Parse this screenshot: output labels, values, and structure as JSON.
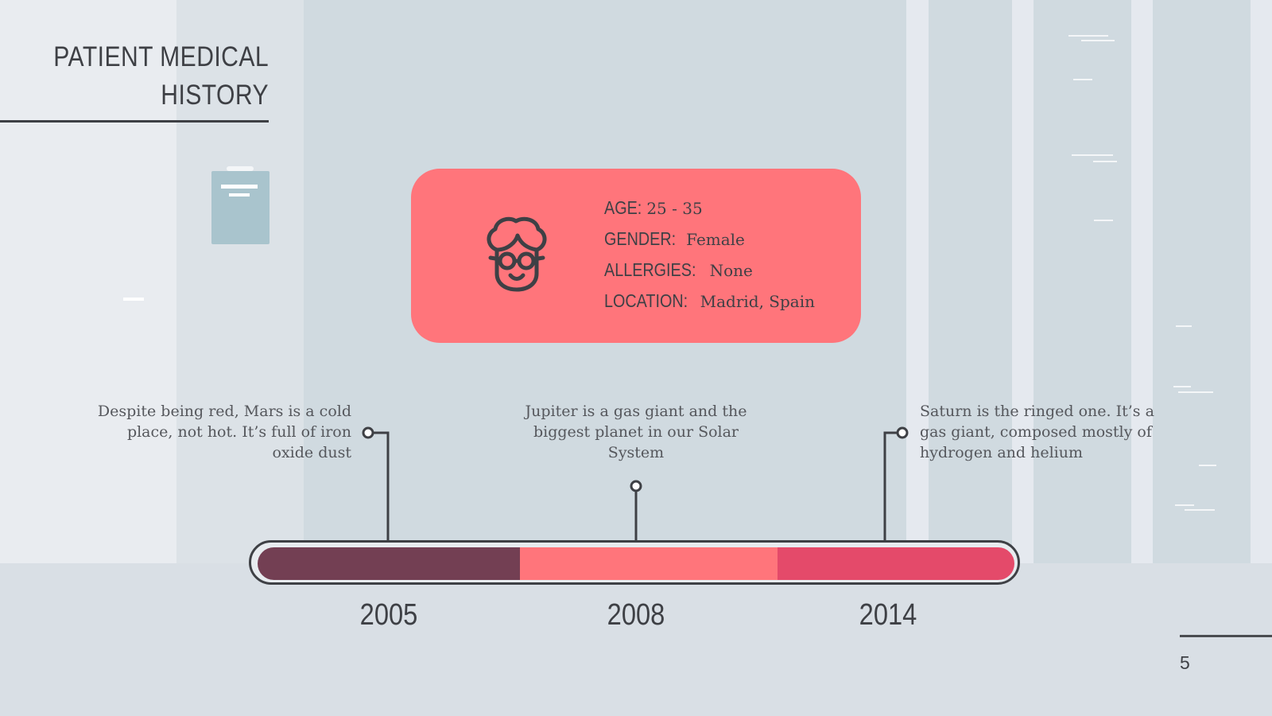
{
  "slide": {
    "title": "PATIENT MEDICAL HISTORY",
    "page_number": "5"
  },
  "patient": {
    "icon": "woman-with-glasses-icon",
    "fields": [
      {
        "label": "AGE:",
        "value": "25 - 35"
      },
      {
        "label": "GENDER:",
        "value": "Female"
      },
      {
        "label": "ALLERGIES:",
        "value": "None"
      },
      {
        "label": "LOCATION:",
        "value": "Madrid, Spain"
      }
    ]
  },
  "timeline": {
    "milestones": [
      {
        "year": "2005",
        "description": "Despite being red, Mars is a cold place, not hot. It’s full of iron oxide dust"
      },
      {
        "year": "2008",
        "description": "Jupiter is a gas giant and the biggest planet in our Solar System"
      },
      {
        "year": "2014",
        "description": "Saturn is the ringed one. It’s a gas giant, composed mostly of hydrogen and helium"
      }
    ]
  },
  "colors": {
    "card": "#ff757b",
    "segment_1": "#733f53",
    "segment_2": "#ff757b",
    "segment_3": "#e44a6a",
    "ink": "#3e4045"
  }
}
